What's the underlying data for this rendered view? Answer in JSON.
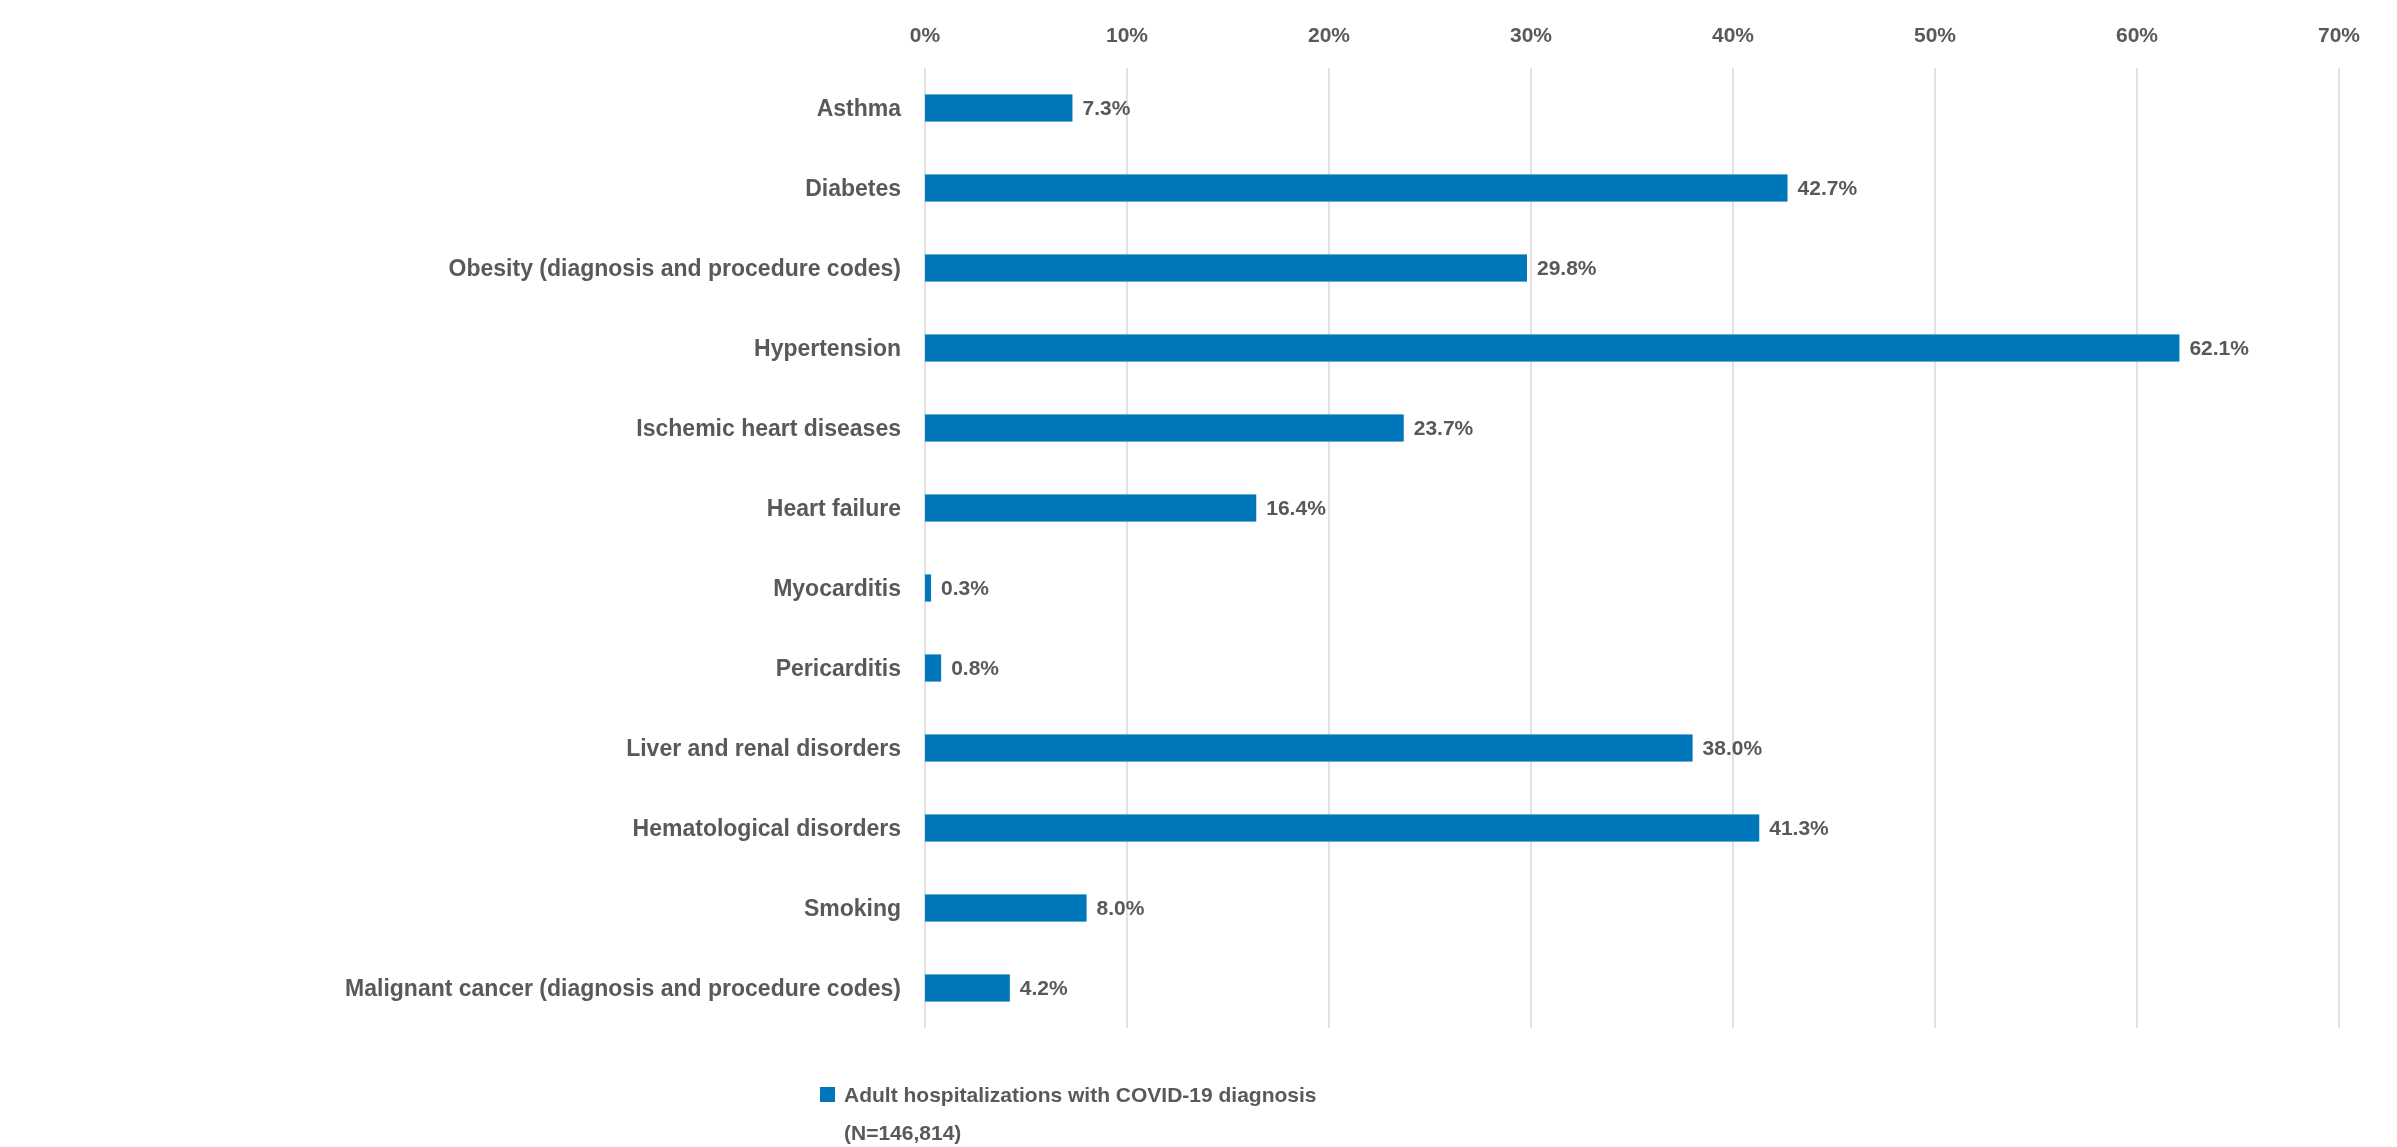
{
  "chart_data": {
    "type": "bar",
    "orientation": "horizontal",
    "categories": [
      "Asthma",
      "Diabetes",
      "Obesity (diagnosis and procedure codes)",
      "Hypertension",
      "Ischemic heart diseases",
      "Heart failure",
      "Myocarditis",
      "Pericarditis",
      "Liver and renal disorders",
      "Hematological disorders",
      "Smoking",
      "Malignant cancer (diagnosis and procedure codes)"
    ],
    "series": [
      {
        "name": "Adult hospitalizations with COVID-19 diagnosis (N=146,814)",
        "color": "#0077bb",
        "values": [
          7.3,
          42.7,
          29.8,
          62.1,
          23.7,
          16.4,
          0.3,
          0.8,
          38.0,
          41.3,
          8.0,
          4.2
        ],
        "value_labels": [
          "7.3%",
          "42.7%",
          "29.8%",
          "62.1%",
          "23.7%",
          "16.4%",
          "0.3%",
          "0.8%",
          "38.0%",
          "41.3%",
          "8.0%",
          "4.2%"
        ]
      }
    ],
    "xlim": [
      0,
      70
    ],
    "xticks": [
      {
        "value": 0,
        "label": "0%"
      },
      {
        "value": 10,
        "label": "10%"
      },
      {
        "value": 20,
        "label": "20%"
      },
      {
        "value": 30,
        "label": "30%"
      },
      {
        "value": 40,
        "label": "40%"
      },
      {
        "value": 50,
        "label": "50%"
      },
      {
        "value": 60,
        "label": "60%"
      },
      {
        "value": 70,
        "label": "70%"
      }
    ],
    "grid": "x",
    "legend": "bottom"
  }
}
